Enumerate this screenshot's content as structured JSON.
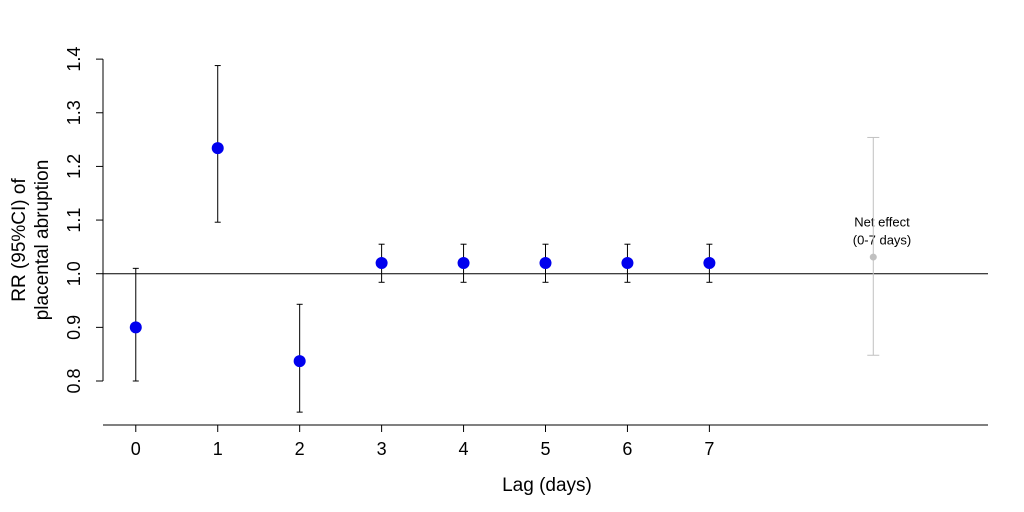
{
  "chart_data": {
    "type": "errorbar",
    "xlabel": "Lag (days)",
    "ylabel": [
      "RR (95%CI) of",
      "placental abruption"
    ],
    "xlim": [
      -0.4,
      10.4
    ],
    "xticks": [
      0,
      1,
      2,
      3,
      4,
      5,
      6,
      7
    ],
    "ylim": [
      0.718,
      1.417
    ],
    "yticks": [
      0.8,
      0.9,
      {
        "value": 1,
        "label": "1.0"
      },
      1.1,
      1.2,
      1.3,
      1.4
    ],
    "reference_line": 1,
    "series": [
      {
        "color": "#0000ee",
        "x": [
          0,
          1,
          2,
          3,
          4,
          5,
          6,
          7
        ],
        "values": [
          0.9,
          1.234,
          0.837,
          1.02,
          1.02,
          1.02,
          1.02,
          1.02
        ],
        "lower": [
          0.8,
          1.096,
          0.742,
          0.984,
          0.984,
          0.984,
          0.984,
          0.984
        ],
        "upper": [
          1.01,
          1.388,
          0.943,
          1.055,
          1.055,
          1.055,
          1.055,
          1.055
        ]
      },
      {
        "color": "#c0c0c0",
        "x": [
          9
        ],
        "values": [
          1.031
        ],
        "lower": [
          0.848
        ],
        "upper": [
          1.254
        ]
      }
    ],
    "annotations": [
      "Net effect",
      "(0-7 days)"
    ]
  }
}
